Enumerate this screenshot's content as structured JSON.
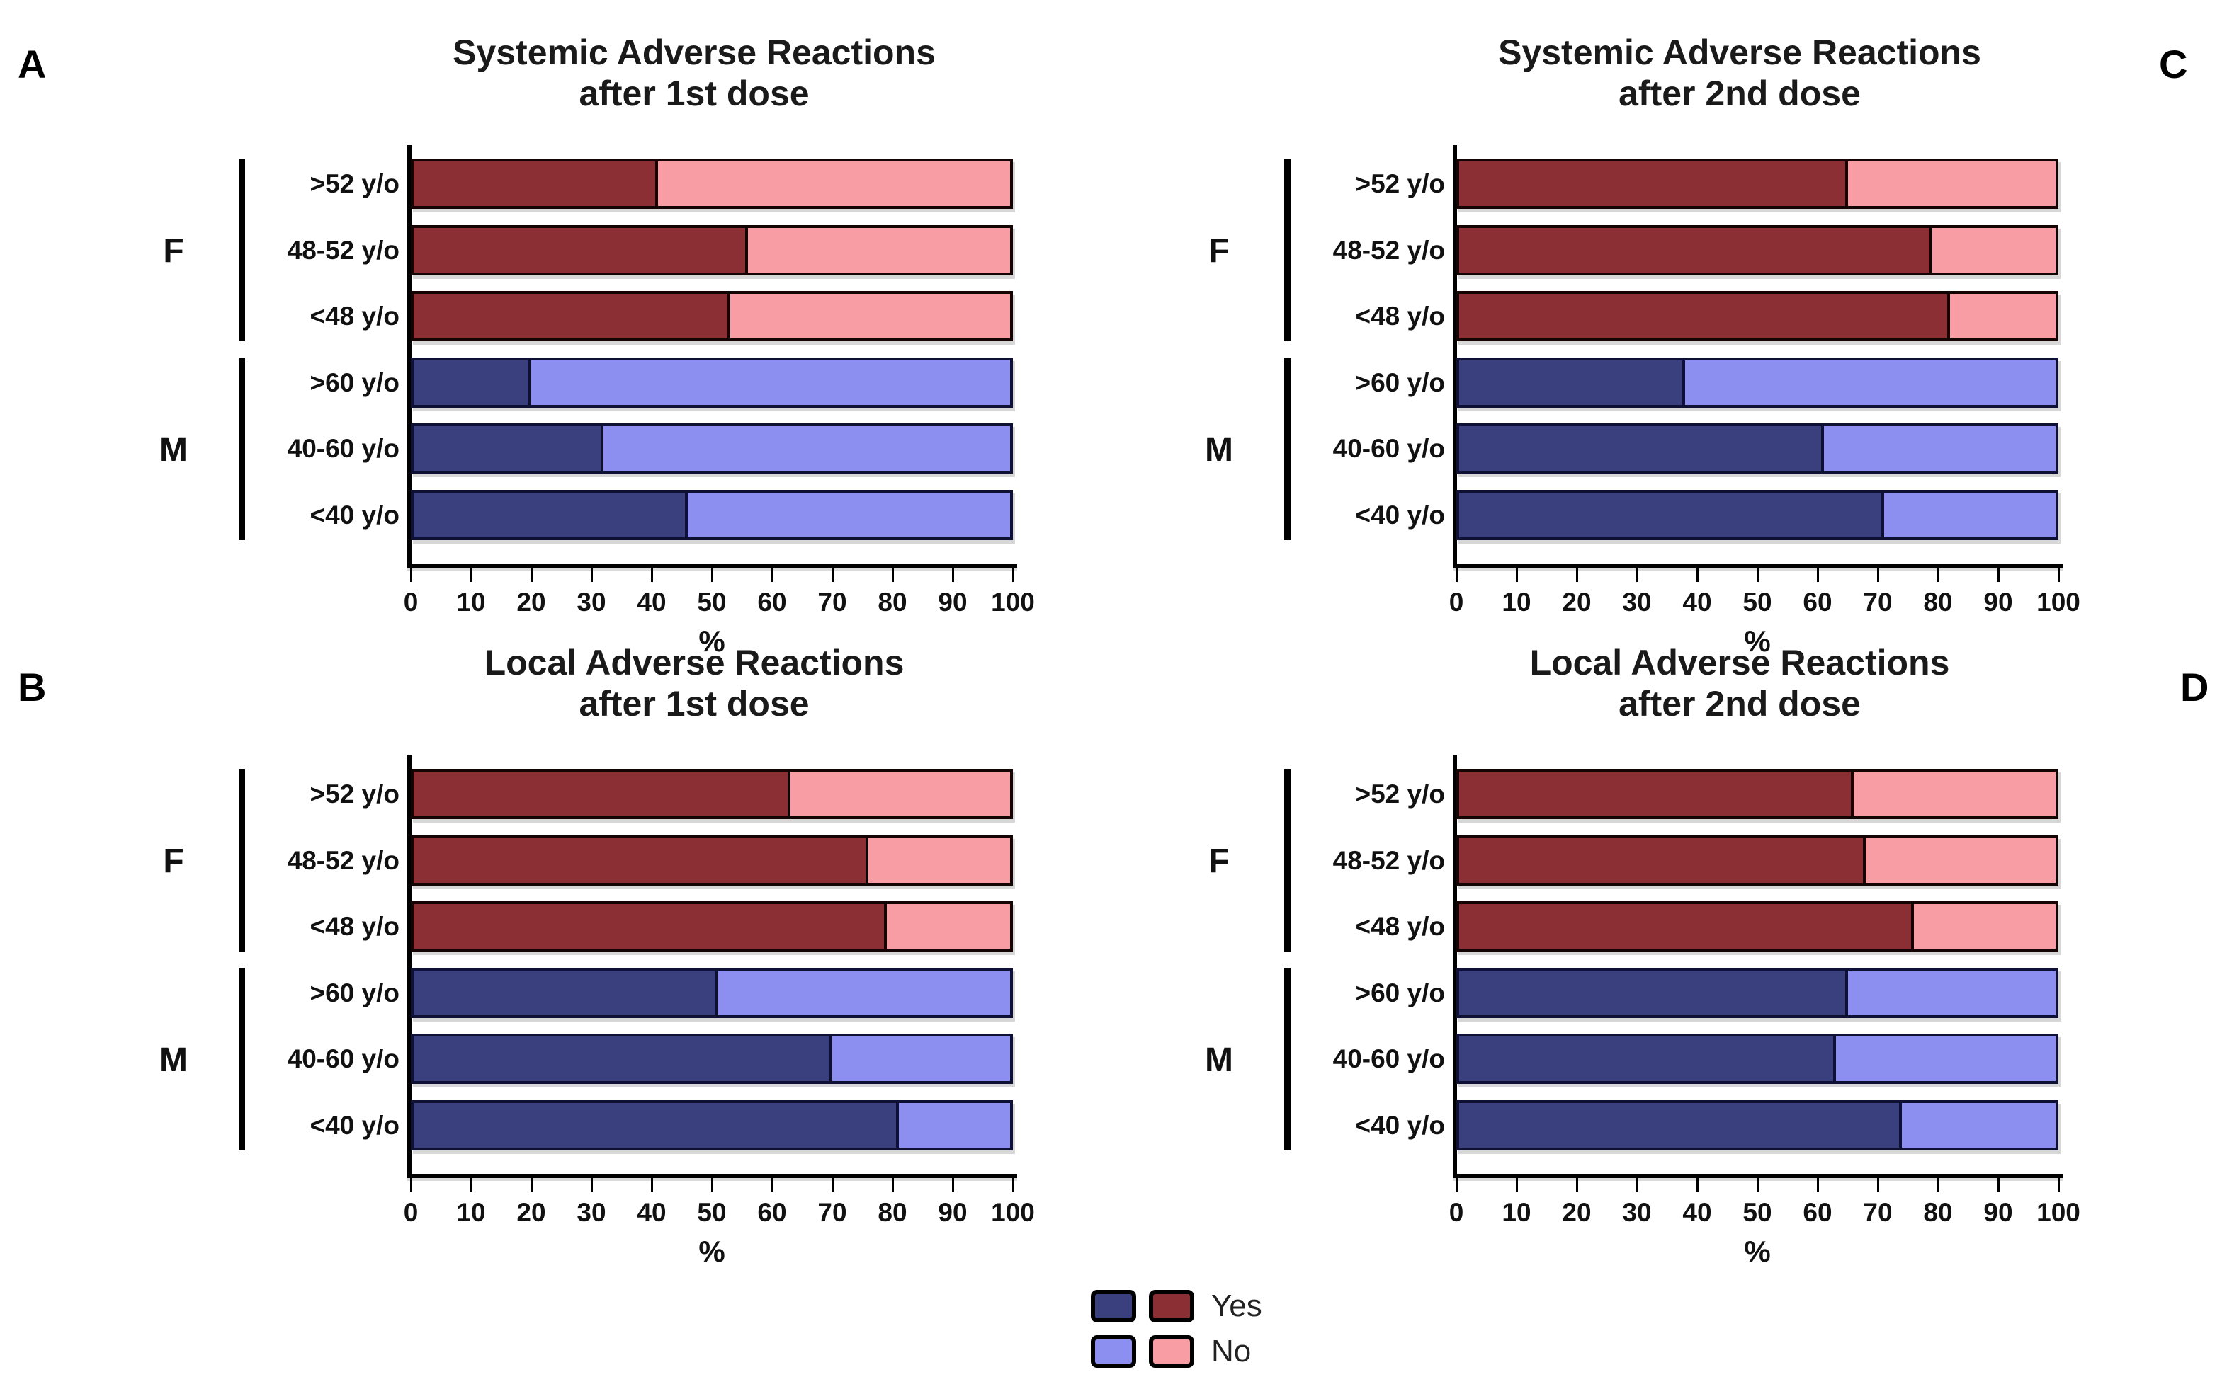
{
  "figure_letters": {
    "a": "A",
    "b": "B",
    "c": "C",
    "d": "D"
  },
  "legend": {
    "yes_label": "Yes",
    "no_label": "No"
  },
  "chart_data": {
    "type": "bar",
    "orientation": "horizontal",
    "stacked": true,
    "units": "%",
    "x_axis": {
      "label": "%",
      "range": [
        0,
        100
      ],
      "ticks": [
        0,
        10,
        20,
        30,
        40,
        50,
        60,
        70,
        80,
        90,
        100
      ],
      "grid": false
    },
    "colors": {
      "female_yes": "#8C2F34",
      "female_no": "#F89DA4",
      "male_yes": "#3A3F7E",
      "male_no": "#8D8FF0"
    },
    "legend_entries": [
      {
        "label": "Yes",
        "male_color": "#3A3F7E",
        "female_color": "#8C2F34"
      },
      {
        "label": "No",
        "male_color": "#8D8FF0",
        "female_color": "#F89DA4"
      }
    ],
    "panels": [
      {
        "letter": "A",
        "title_line1": "Systemic Adverse Reactions",
        "title_line2": "after 1st dose",
        "xlabel": "%",
        "groups": [
          {
            "sex": "F",
            "rows": [
              {
                "age": ">52 y/o",
                "yes": 41,
                "no": 59
              },
              {
                "age": "48-52 y/o",
                "yes": 56,
                "no": 44
              },
              {
                "age": "<48 y/o",
                "yes": 53,
                "no": 47
              }
            ]
          },
          {
            "sex": "M",
            "rows": [
              {
                "age": ">60 y/o",
                "yes": 20,
                "no": 80
              },
              {
                "age": "40-60 y/o",
                "yes": 32,
                "no": 68
              },
              {
                "age": "<40 y/o",
                "yes": 46,
                "no": 54
              }
            ]
          }
        ]
      },
      {
        "letter": "C",
        "title_line1": "Systemic Adverse Reactions",
        "title_line2": "after 2nd dose",
        "xlabel": "%",
        "groups": [
          {
            "sex": "F",
            "rows": [
              {
                "age": ">52 y/o",
                "yes": 65,
                "no": 35
              },
              {
                "age": "48-52 y/o",
                "yes": 79,
                "no": 21
              },
              {
                "age": "<48 y/o",
                "yes": 82,
                "no": 18
              }
            ]
          },
          {
            "sex": "M",
            "rows": [
              {
                "age": ">60 y/o",
                "yes": 38,
                "no": 62
              },
              {
                "age": "40-60 y/o",
                "yes": 61,
                "no": 39
              },
              {
                "age": "<40 y/o",
                "yes": 71,
                "no": 29
              }
            ]
          }
        ]
      },
      {
        "letter": "B",
        "title_line1": "Local Adverse Reactions",
        "title_line2": "after 1st dose",
        "xlabel": "%",
        "groups": [
          {
            "sex": "F",
            "rows": [
              {
                "age": ">52 y/o",
                "yes": 63,
                "no": 37
              },
              {
                "age": "48-52 y/o",
                "yes": 76,
                "no": 24
              },
              {
                "age": "<48 y/o",
                "yes": 79,
                "no": 21
              }
            ]
          },
          {
            "sex": "M",
            "rows": [
              {
                "age": ">60 y/o",
                "yes": 51,
                "no": 49
              },
              {
                "age": "40-60 y/o",
                "yes": 70,
                "no": 30
              },
              {
                "age": "<40 y/o",
                "yes": 81,
                "no": 19
              }
            ]
          }
        ]
      },
      {
        "letter": "D",
        "title_line1": "Local Adverse Reactions",
        "title_line2": "after 2nd dose",
        "xlabel": "%",
        "groups": [
          {
            "sex": "F",
            "rows": [
              {
                "age": ">52 y/o",
                "yes": 66,
                "no": 34
              },
              {
                "age": "48-52 y/o",
                "yes": 68,
                "no": 32
              },
              {
                "age": "<48 y/o",
                "yes": 76,
                "no": 24
              }
            ]
          },
          {
            "sex": "M",
            "rows": [
              {
                "age": ">60 y/o",
                "yes": 65,
                "no": 35
              },
              {
                "age": "40-60 y/o",
                "yes": 63,
                "no": 37
              },
              {
                "age": "<40 y/o",
                "yes": 74,
                "no": 26
              }
            ]
          }
        ]
      }
    ]
  }
}
